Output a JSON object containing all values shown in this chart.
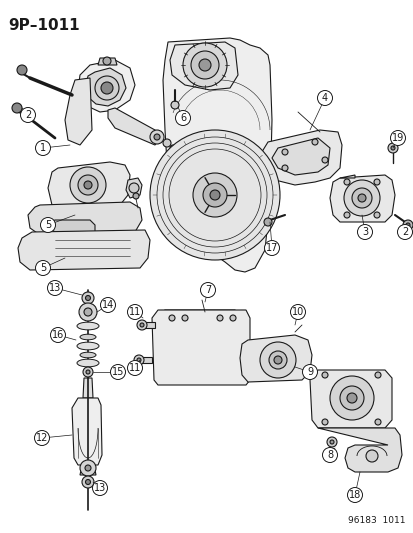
{
  "title": "9P–1011",
  "footer": "96183  1011",
  "bg_color": "#ffffff",
  "fig_width": 4.14,
  "fig_height": 5.33,
  "dpi": 100,
  "title_fontsize": 11,
  "title_fontweight": "bold",
  "footer_fontsize": 6.5,
  "line_color": "#1a1a1a",
  "label_fontsize": 7.0,
  "label_circle_r": 7.5
}
